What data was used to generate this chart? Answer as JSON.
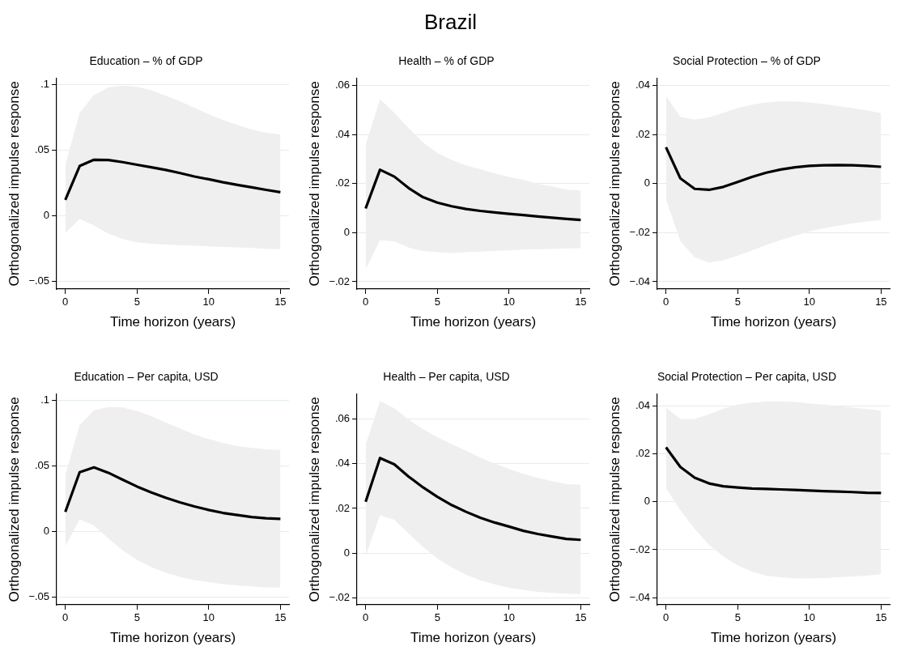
{
  "chart_data": [
    {
      "type": "line",
      "title": "Education – % of GDP",
      "xlabel": "Time horizon (years)",
      "ylabel": "Orthogonalized impulse response",
      "annotations": [
        "Brazil"
      ],
      "grid": "y",
      "legend": false,
      "x": [
        0,
        1,
        2,
        3,
        4,
        5,
        6,
        7,
        8,
        9,
        10,
        11,
        12,
        13,
        14,
        15
      ],
      "xlim": [
        -0.6,
        15.6
      ],
      "xticks": [
        0,
        5,
        10,
        15
      ],
      "ylim": [
        -0.056,
        0.105
      ],
      "yticks": [
        {
          "value": -0.05,
          "label": "−.05"
        },
        {
          "value": 0,
          "label": "0"
        },
        {
          "value": 0.05,
          "label": ".05"
        },
        {
          "value": 0.1,
          "label": ".1"
        }
      ],
      "series": [
        {
          "color": "#000000",
          "values": [
            0.0122,
            0.038,
            0.0428,
            0.0426,
            0.041,
            0.039,
            0.037,
            0.035,
            0.0326,
            0.03,
            0.0279,
            0.0256,
            0.0236,
            0.0217,
            0.0198,
            0.018
          ],
          "upper": [
            0.039,
            0.0787,
            0.0924,
            0.098,
            0.0994,
            0.0986,
            0.0959,
            0.0917,
            0.0876,
            0.0824,
            0.0776,
            0.0731,
            0.0694,
            0.0659,
            0.0634,
            0.0622
          ],
          "lower": [
            -0.0132,
            -0.0023,
            -0.0074,
            -0.0136,
            -0.0178,
            -0.0202,
            -0.0213,
            -0.0219,
            -0.0225,
            -0.0229,
            -0.0233,
            -0.0238,
            -0.0242,
            -0.0246,
            -0.0252,
            -0.0256
          ]
        }
      ]
    },
    {
      "type": "line",
      "title": "Health – % of GDP",
      "xlabel": "Time horizon (years)",
      "ylabel": "Orthogonalized impulse response",
      "grid": "y",
      "legend": false,
      "x": [
        0,
        1,
        2,
        3,
        4,
        5,
        6,
        7,
        8,
        9,
        10,
        11,
        12,
        13,
        14,
        15
      ],
      "xlim": [
        -0.6,
        15.6
      ],
      "xticks": [
        0,
        5,
        10,
        15
      ],
      "ylim": [
        -0.023,
        0.063
      ],
      "yticks": [
        {
          "value": -0.02,
          "label": "−.02"
        },
        {
          "value": 0,
          "label": "0"
        },
        {
          "value": 0.02,
          "label": ".02"
        },
        {
          "value": 0.04,
          "label": ".04"
        },
        {
          "value": 0.06,
          "label": ".06"
        }
      ],
      "series": [
        {
          "color": "#000000",
          "values": [
            0.0099,
            0.0257,
            0.0229,
            0.0182,
            0.0145,
            0.0123,
            0.0108,
            0.0097,
            0.0089,
            0.0083,
            0.0077,
            0.0072,
            0.0066,
            0.0061,
            0.0056,
            0.0052
          ],
          "upper": [
            0.0358,
            0.0545,
            0.049,
            0.0427,
            0.0369,
            0.0325,
            0.0297,
            0.0275,
            0.0259,
            0.0242,
            0.0228,
            0.0215,
            0.02,
            0.0189,
            0.0176,
            0.0172
          ],
          "lower": [
            -0.0149,
            -0.0031,
            -0.0035,
            -0.0061,
            -0.0075,
            -0.008,
            -0.0083,
            -0.008,
            -0.0077,
            -0.0074,
            -0.0072,
            -0.0069,
            -0.0067,
            -0.0066,
            -0.0064,
            -0.0063
          ]
        }
      ]
    },
    {
      "type": "line",
      "title": "Social Protection – % of GDP",
      "xlabel": "Time horizon (years)",
      "ylabel": "Orthogonalized impulse response",
      "grid": "y",
      "legend": false,
      "x": [
        0,
        1,
        2,
        3,
        4,
        5,
        6,
        7,
        8,
        9,
        10,
        11,
        12,
        13,
        14,
        15
      ],
      "xlim": [
        -0.6,
        15.6
      ],
      "xticks": [
        0,
        5,
        10,
        15
      ],
      "ylim": [
        -0.043,
        0.043
      ],
      "yticks": [
        {
          "value": -0.04,
          "label": "−.04"
        },
        {
          "value": -0.02,
          "label": "−.02"
        },
        {
          "value": 0,
          "label": "0"
        },
        {
          "value": 0.02,
          "label": ".02"
        },
        {
          "value": 0.04,
          "label": ".04"
        }
      ],
      "series": [
        {
          "color": "#000000",
          "values": [
            0.0149,
            0.0022,
            -0.0021,
            -0.0025,
            -0.0013,
            0.0007,
            0.0028,
            0.0045,
            0.0058,
            0.0067,
            0.0073,
            0.0075,
            0.0076,
            0.0075,
            0.0073,
            0.0069
          ],
          "upper": [
            0.0358,
            0.0273,
            0.0262,
            0.0271,
            0.029,
            0.0309,
            0.0323,
            0.0332,
            0.0336,
            0.0336,
            0.0332,
            0.0325,
            0.0317,
            0.0309,
            0.03,
            0.0288
          ],
          "lower": [
            -0.0063,
            -0.0234,
            -0.03,
            -0.0322,
            -0.0313,
            -0.0294,
            -0.0272,
            -0.025,
            -0.023,
            -0.0212,
            -0.0195,
            -0.0182,
            -0.0171,
            -0.0162,
            -0.0154,
            -0.0149
          ]
        }
      ]
    },
    {
      "type": "line",
      "title": "Education – Per capita, USD",
      "xlabel": "Time horizon (years)",
      "ylabel": "Orthogonalized impulse response",
      "grid": "y",
      "legend": false,
      "x": [
        0,
        1,
        2,
        3,
        4,
        5,
        6,
        7,
        8,
        9,
        10,
        11,
        12,
        13,
        14,
        15
      ],
      "xlim": [
        -0.6,
        15.6
      ],
      "xticks": [
        0,
        5,
        10,
        15
      ],
      "ylim": [
        -0.056,
        0.105
      ],
      "yticks": [
        {
          "value": -0.05,
          "label": "−.05"
        },
        {
          "value": 0,
          "label": "0"
        },
        {
          "value": 0.05,
          "label": ".05"
        },
        {
          "value": 0.1,
          "label": ".1"
        }
      ],
      "series": [
        {
          "color": "#000000",
          "values": [
            0.015,
            0.0453,
            0.049,
            0.0449,
            0.0396,
            0.0344,
            0.0299,
            0.0258,
            0.0223,
            0.0192,
            0.0165,
            0.0142,
            0.0126,
            0.0111,
            0.0101,
            0.0097
          ],
          "upper": [
            0.0433,
            0.0814,
            0.0927,
            0.0952,
            0.0948,
            0.0921,
            0.0882,
            0.0834,
            0.0787,
            0.0742,
            0.0707,
            0.0676,
            0.0653,
            0.0639,
            0.0628,
            0.0624
          ],
          "lower": [
            -0.0113,
            0.0093,
            0.0047,
            -0.0052,
            -0.0144,
            -0.0216,
            -0.0272,
            -0.0315,
            -0.0346,
            -0.0371,
            -0.0387,
            -0.0402,
            -0.0412,
            -0.042,
            -0.0427,
            -0.0429
          ]
        }
      ]
    },
    {
      "type": "line",
      "title": "Health – Per capita, USD",
      "xlabel": "Time horizon (years)",
      "ylabel": "Orthogonalized impulse response",
      "grid": "y",
      "legend": false,
      "x": [
        0,
        1,
        2,
        3,
        4,
        5,
        6,
        7,
        8,
        9,
        10,
        11,
        12,
        13,
        14,
        15
      ],
      "xlim": [
        -0.6,
        15.6
      ],
      "xticks": [
        0,
        5,
        10,
        15
      ],
      "ylim": [
        -0.023,
        0.071
      ],
      "yticks": [
        {
          "value": -0.02,
          "label": "−.02"
        },
        {
          "value": 0,
          "label": "0"
        },
        {
          "value": 0.02,
          "label": ".02"
        },
        {
          "value": 0.04,
          "label": ".04"
        },
        {
          "value": 0.06,
          "label": ".06"
        }
      ],
      "series": [
        {
          "color": "#000000",
          "values": [
            0.023,
            0.0425,
            0.0397,
            0.0342,
            0.0294,
            0.0252,
            0.0215,
            0.0185,
            0.0158,
            0.0137,
            0.0119,
            0.01,
            0.0086,
            0.0075,
            0.0064,
            0.006
          ],
          "upper": [
            0.0484,
            0.0679,
            0.0647,
            0.0596,
            0.0554,
            0.0518,
            0.0487,
            0.0457,
            0.0427,
            0.04,
            0.0376,
            0.0354,
            0.0336,
            0.0322,
            0.0308,
            0.0306
          ],
          "lower": [
            -0.0012,
            0.0169,
            0.0149,
            0.0088,
            0.0028,
            -0.0023,
            -0.0063,
            -0.0096,
            -0.0121,
            -0.0139,
            -0.0154,
            -0.0163,
            -0.0172,
            -0.0177,
            -0.018,
            -0.0182
          ]
        }
      ]
    },
    {
      "type": "line",
      "title": "Social Protection – Per capita, USD",
      "xlabel": "Time horizon (years)",
      "ylabel": "Orthogonalized impulse response",
      "grid": "y",
      "legend": false,
      "x": [
        0,
        1,
        2,
        3,
        4,
        5,
        6,
        7,
        8,
        9,
        10,
        11,
        12,
        13,
        14,
        15
      ],
      "xlim": [
        -0.6,
        15.6
      ],
      "xticks": [
        0,
        5,
        10,
        15
      ],
      "ylim": [
        -0.043,
        0.045
      ],
      "yticks": [
        {
          "value": -0.04,
          "label": "−.04"
        },
        {
          "value": -0.02,
          "label": "−.02"
        },
        {
          "value": 0,
          "label": "0"
        },
        {
          "value": 0.02,
          "label": ".02"
        },
        {
          "value": 0.04,
          "label": ".04"
        }
      ],
      "series": [
        {
          "color": "#000000",
          "values": [
            0.0228,
            0.0146,
            0.0101,
            0.0077,
            0.0065,
            0.006,
            0.0056,
            0.0054,
            0.0052,
            0.005,
            0.0047,
            0.0045,
            0.0043,
            0.0041,
            0.0038,
            0.0037
          ],
          "upper": [
            0.0394,
            0.0346,
            0.0346,
            0.0366,
            0.0389,
            0.0406,
            0.0415,
            0.0419,
            0.0419,
            0.0417,
            0.0411,
            0.0406,
            0.04,
            0.0394,
            0.0388,
            0.0381
          ],
          "lower": [
            0.0056,
            -0.0034,
            -0.0113,
            -0.018,
            -0.0228,
            -0.0265,
            -0.0291,
            -0.0308,
            -0.0315,
            -0.0319,
            -0.0319,
            -0.0318,
            -0.0315,
            -0.0312,
            -0.0308,
            -0.0302
          ]
        }
      ]
    }
  ]
}
